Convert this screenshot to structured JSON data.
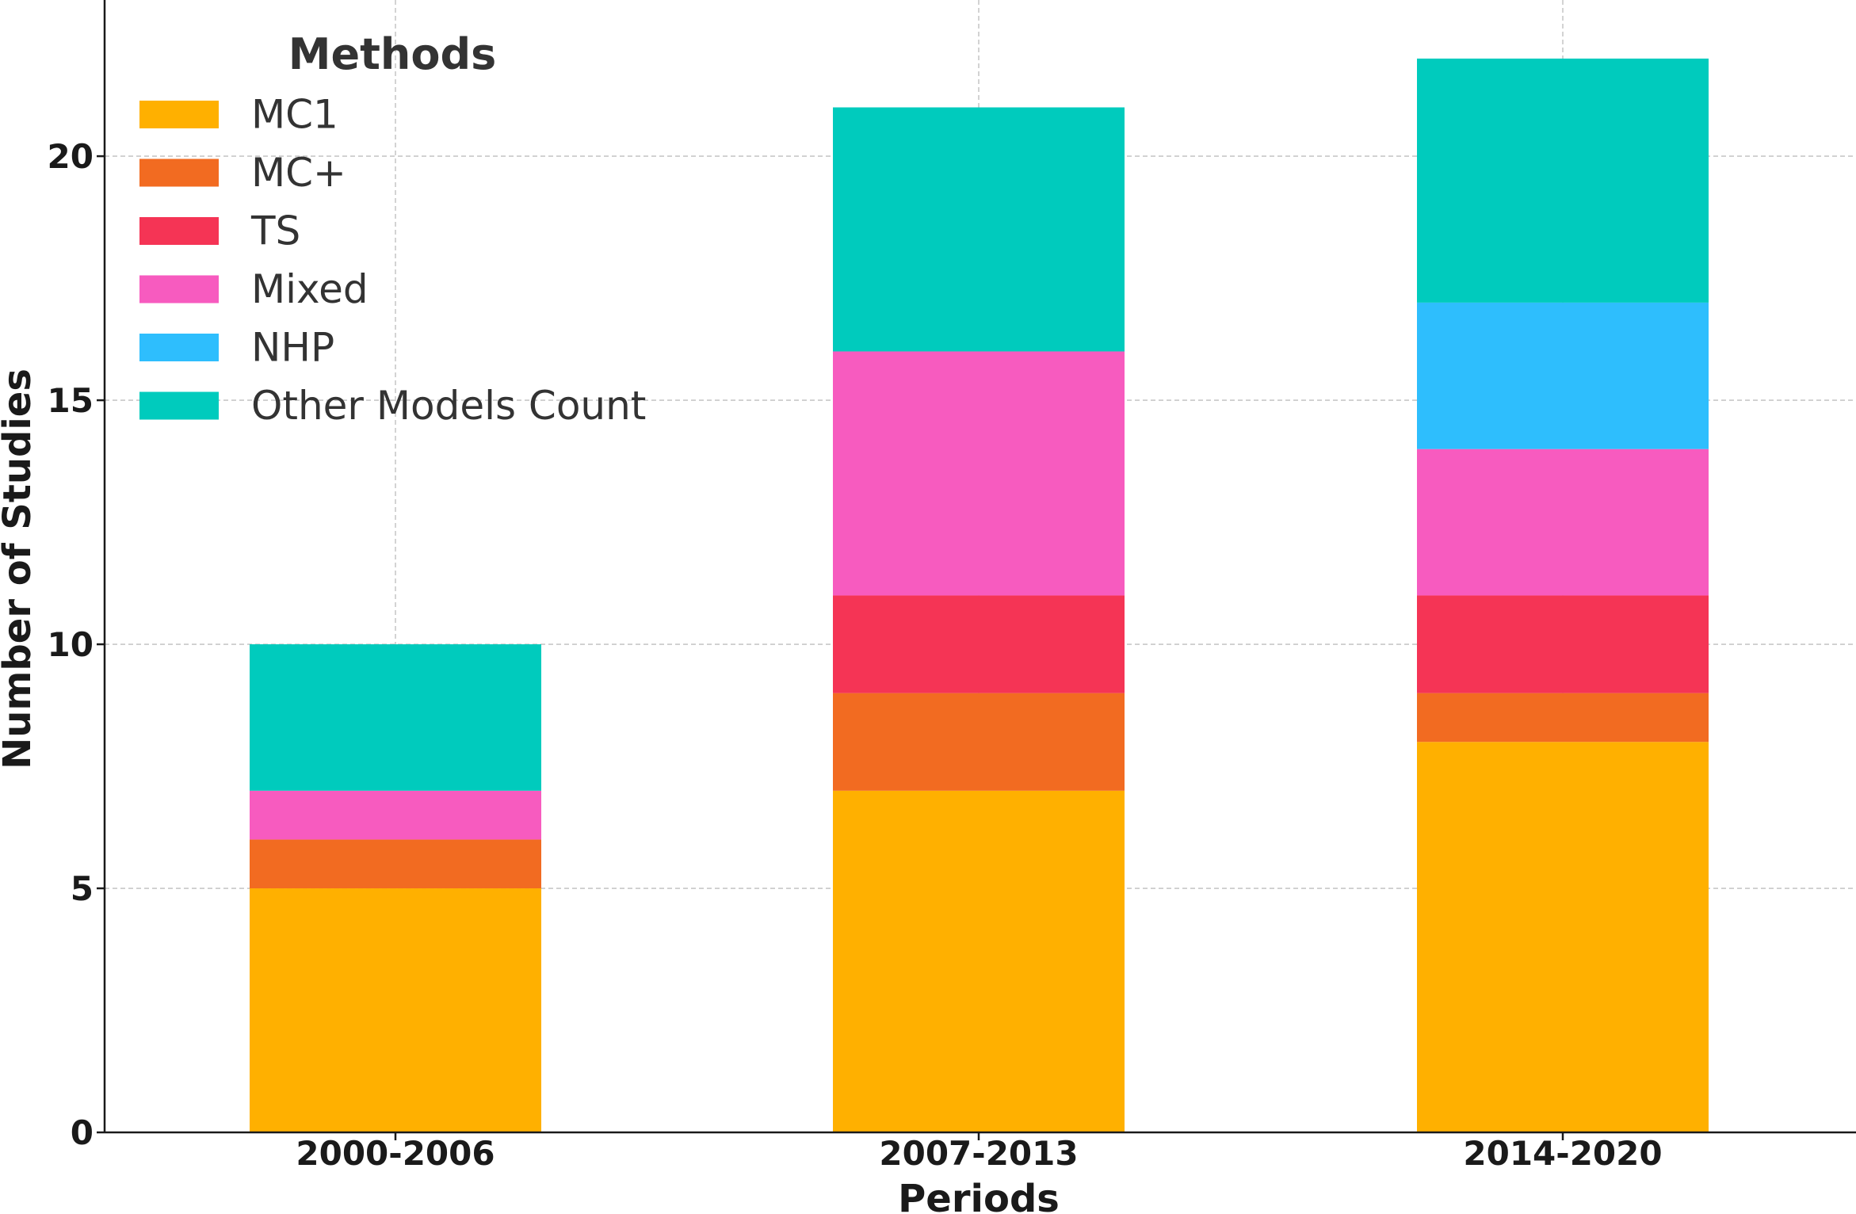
{
  "chart_data": {
    "type": "bar",
    "stacked": true,
    "categories": [
      "2000-2006",
      "2007-2013",
      "2014-2020"
    ],
    "series": [
      {
        "name": "MC1",
        "color": "#FFB000",
        "values": [
          5,
          7,
          8
        ]
      },
      {
        "name": "MC+",
        "color": "#F26B21",
        "values": [
          1,
          2,
          1
        ]
      },
      {
        "name": "TS",
        "color": "#F53455",
        "values": [
          0,
          2,
          2
        ]
      },
      {
        "name": "Mixed",
        "color": "#F75BBF",
        "values": [
          1,
          5,
          3
        ]
      },
      {
        "name": "NHP",
        "color": "#2EBEFD",
        "values": [
          0,
          0,
          3
        ]
      },
      {
        "name": "Other Models Count",
        "color": "#00CBBD",
        "values": [
          3,
          5,
          5
        ]
      }
    ],
    "title": "",
    "xlabel": "Periods",
    "ylabel": "Number of Studies",
    "ylim": [
      0,
      23.2
    ],
    "yticks": [
      0,
      5,
      10,
      15,
      20
    ],
    "grid": true,
    "legend": {
      "title": "Methods",
      "position": "top-left"
    }
  }
}
